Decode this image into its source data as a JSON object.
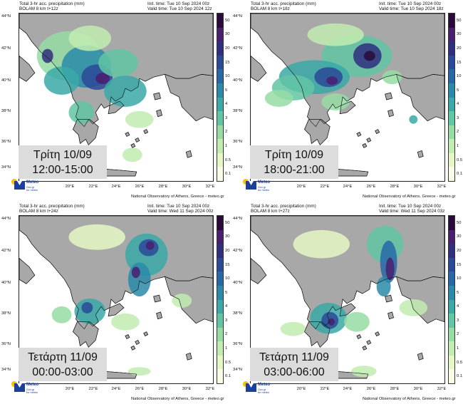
{
  "colorbar": {
    "labels": [
      "0.1",
      "0.5",
      "1",
      "2",
      "3",
      "4",
      "5",
      "10",
      "15",
      "20",
      "30",
      "50"
    ],
    "colors": [
      "#fafde6",
      "#e6f7c6",
      "#c2ecb0",
      "#96dca4",
      "#62c6a4",
      "#3aa9a7",
      "#2a8aa8",
      "#2769a6",
      "#2a4a98",
      "#2f2f7e",
      "#4a1f6e",
      "#2a0a3a"
    ]
  },
  "axes": {
    "lat_labels": [
      "44°N",
      "42°N",
      "40°N",
      "38°N",
      "36°N",
      "34°N"
    ],
    "lon_labels": [
      "20°E",
      "22°E",
      "24°E",
      "26°E",
      "28°E",
      "30°E",
      "32°E"
    ]
  },
  "colors": {
    "land": "#a8a8a8",
    "sea": "#ffffff",
    "coast": "#111111",
    "timebox": "#dcdcdc"
  },
  "logo": {
    "name": "Meteo",
    "sub1": "Gov.gr",
    "sub2": "for meteo"
  },
  "credit": "National Observatory of Athens, Greece - meteo.gr",
  "panels": [
    {
      "title1": "Total 3-hr acc. precipitation (mm)",
      "title2": "BOLAM 8 km t+12z",
      "init": "Init. time: Tue 10 Sep 2024 00z",
      "valid": "Valid time: Tue 10 Sep 2024 12z",
      "day": "Τρίτη 10/09",
      "hours": "12:00-15:00"
    },
    {
      "title1": "Total 3-hr acc. precipitation (mm)",
      "title2": "BOLAM 8 km t+18z",
      "init": "Init. time: Tue 10 Sep 2024 00z",
      "valid": "Valid time: Tue 10 Sep 2024 18z",
      "day": "Τρίτη 10/09",
      "hours": "18:00-21:00"
    },
    {
      "title1": "Total 3-hr acc. precipitation (mm)",
      "title2": "BOLAM 8 km t+24z",
      "init": "Init. time: Tue 10 Sep 2024 00z",
      "valid": "Valid time: Wed 11 Sep 2024 00z",
      "day": "Τετάρτη 11/09",
      "hours": "00:00-03:00"
    },
    {
      "title1": "Total 3-hr acc. precipitation (mm)",
      "title2": "BOLAM 8 km t+27z",
      "init": "Init. time: Tue 10 Sep 2024 00z",
      "valid": "Valid time: Wed 11 Sep 2024 03z",
      "day": "Τετάρτη 11/09",
      "hours": "03:00-06:00"
    }
  ]
}
